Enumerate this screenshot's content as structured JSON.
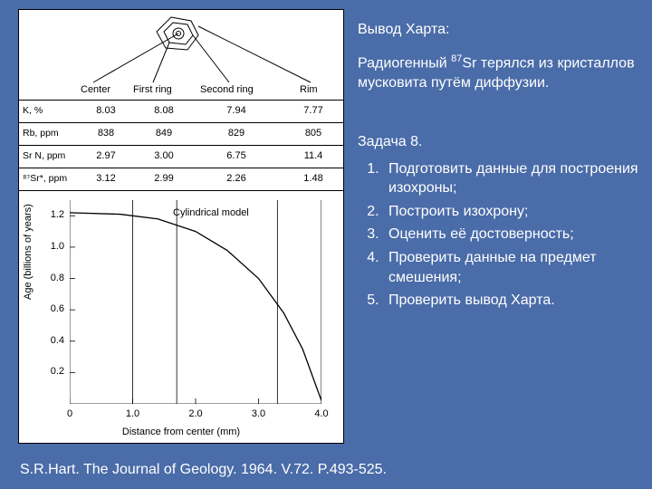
{
  "background_color": "#4a6ca8",
  "text_color": "#ffffff",
  "figure": {
    "background": "#ffffff",
    "stroke": "#000000",
    "zone_labels": [
      "Center",
      "First ring",
      "Second ring",
      "Rim"
    ],
    "zone_label_fontsize": 11,
    "table": {
      "row_labels": [
        "K, %",
        "Rb, ppm",
        "Sr N, ppm",
        "⁸⁷Sr*, ppm"
      ],
      "columns": [
        "Center",
        "First ring",
        "Second ring",
        "Rim"
      ],
      "rows": [
        [
          "8.03",
          "8.08",
          "7.94",
          "7.77"
        ],
        [
          "838",
          "849",
          "829",
          "805"
        ],
        [
          "2.97",
          "3.00",
          "6.75",
          "11.4"
        ],
        [
          "3.12",
          "2.99",
          "2.26",
          "1.48"
        ]
      ],
      "fontsize": 11
    },
    "chart": {
      "type": "line",
      "curve_label": "Cylindrical model",
      "xlabel": "Distance from center (mm)",
      "ylabel": "Age (billions of years)",
      "xlim": [
        0,
        4.0
      ],
      "ylim": [
        0,
        1.3
      ],
      "xticks": [
        0,
        1.0,
        2.0,
        3.0,
        4.0
      ],
      "yticks": [
        0.2,
        0.4,
        0.6,
        0.8,
        1.0,
        1.2
      ],
      "vlines_mm": [
        1.0,
        1.7,
        3.3,
        4.0
      ],
      "curve_points_mm_age": [
        [
          0.0,
          1.22
        ],
        [
          0.8,
          1.21
        ],
        [
          1.4,
          1.18
        ],
        [
          2.0,
          1.1
        ],
        [
          2.5,
          0.98
        ],
        [
          3.0,
          0.8
        ],
        [
          3.4,
          0.58
        ],
        [
          3.7,
          0.35
        ],
        [
          4.0,
          0.02
        ]
      ],
      "label_fontsize": 11,
      "tick_fontsize": 11,
      "line_color": "#000000",
      "line_width": 1.3
    }
  },
  "hart": {
    "title": "Вывод Харта:",
    "body_pre": "Радиогенный ",
    "body_sup": "87",
    "body_post": "Sr терялся из кристаллов мусковита путём диффузии."
  },
  "task": {
    "title": "Задача 8.",
    "items": [
      "Подготовить данные для построения изохроны;",
      "Построить изохрону;",
      "Оценить её достоверность;",
      "Проверить данные на предмет смешения;",
      "Проверить вывод Харта."
    ]
  },
  "citation": "S.R.Hart. The Journal of Geology. 1964. V.72. P.493-525."
}
